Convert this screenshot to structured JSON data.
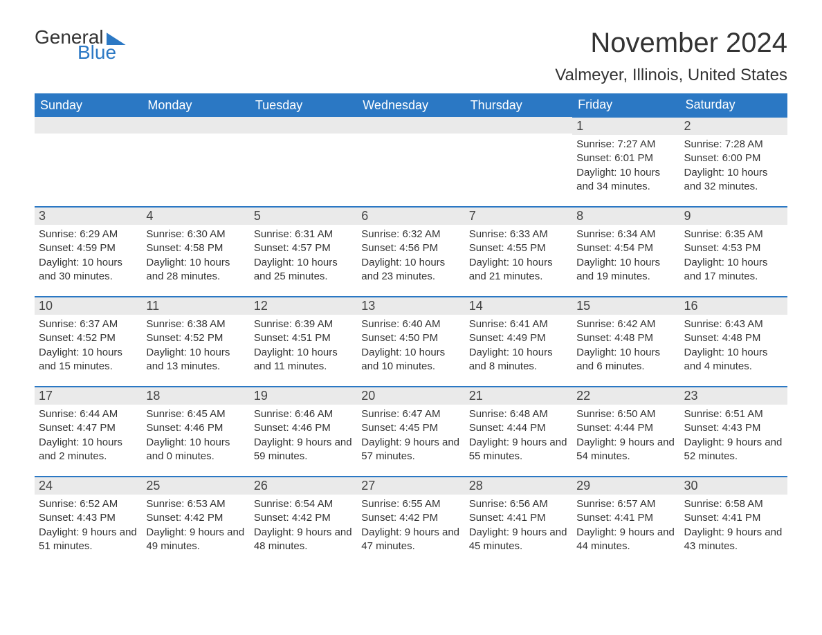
{
  "logo": {
    "word1": "General",
    "word2": "Blue"
  },
  "title": "November 2024",
  "location": "Valmeyer, Illinois, United States",
  "colors": {
    "brand_blue": "#2b78c4",
    "header_text": "#ffffff",
    "daynum_bg": "#eaeaea",
    "text": "#333333",
    "background": "#ffffff"
  },
  "weekdays": [
    "Sunday",
    "Monday",
    "Tuesday",
    "Wednesday",
    "Thursday",
    "Friday",
    "Saturday"
  ],
  "layout": {
    "start_weekday_index": 5,
    "days_in_month": 30,
    "rows": 5
  },
  "days": {
    "1": {
      "sunrise": "7:27 AM",
      "sunset": "6:01 PM",
      "daylight": "10 hours and 34 minutes."
    },
    "2": {
      "sunrise": "7:28 AM",
      "sunset": "6:00 PM",
      "daylight": "10 hours and 32 minutes."
    },
    "3": {
      "sunrise": "6:29 AM",
      "sunset": "4:59 PM",
      "daylight": "10 hours and 30 minutes."
    },
    "4": {
      "sunrise": "6:30 AM",
      "sunset": "4:58 PM",
      "daylight": "10 hours and 28 minutes."
    },
    "5": {
      "sunrise": "6:31 AM",
      "sunset": "4:57 PM",
      "daylight": "10 hours and 25 minutes."
    },
    "6": {
      "sunrise": "6:32 AM",
      "sunset": "4:56 PM",
      "daylight": "10 hours and 23 minutes."
    },
    "7": {
      "sunrise": "6:33 AM",
      "sunset": "4:55 PM",
      "daylight": "10 hours and 21 minutes."
    },
    "8": {
      "sunrise": "6:34 AM",
      "sunset": "4:54 PM",
      "daylight": "10 hours and 19 minutes."
    },
    "9": {
      "sunrise": "6:35 AM",
      "sunset": "4:53 PM",
      "daylight": "10 hours and 17 minutes."
    },
    "10": {
      "sunrise": "6:37 AM",
      "sunset": "4:52 PM",
      "daylight": "10 hours and 15 minutes."
    },
    "11": {
      "sunrise": "6:38 AM",
      "sunset": "4:52 PM",
      "daylight": "10 hours and 13 minutes."
    },
    "12": {
      "sunrise": "6:39 AM",
      "sunset": "4:51 PM",
      "daylight": "10 hours and 11 minutes."
    },
    "13": {
      "sunrise": "6:40 AM",
      "sunset": "4:50 PM",
      "daylight": "10 hours and 10 minutes."
    },
    "14": {
      "sunrise": "6:41 AM",
      "sunset": "4:49 PM",
      "daylight": "10 hours and 8 minutes."
    },
    "15": {
      "sunrise": "6:42 AM",
      "sunset": "4:48 PM",
      "daylight": "10 hours and 6 minutes."
    },
    "16": {
      "sunrise": "6:43 AM",
      "sunset": "4:48 PM",
      "daylight": "10 hours and 4 minutes."
    },
    "17": {
      "sunrise": "6:44 AM",
      "sunset": "4:47 PM",
      "daylight": "10 hours and 2 minutes."
    },
    "18": {
      "sunrise": "6:45 AM",
      "sunset": "4:46 PM",
      "daylight": "10 hours and 0 minutes."
    },
    "19": {
      "sunrise": "6:46 AM",
      "sunset": "4:46 PM",
      "daylight": "9 hours and 59 minutes."
    },
    "20": {
      "sunrise": "6:47 AM",
      "sunset": "4:45 PM",
      "daylight": "9 hours and 57 minutes."
    },
    "21": {
      "sunrise": "6:48 AM",
      "sunset": "4:44 PM",
      "daylight": "9 hours and 55 minutes."
    },
    "22": {
      "sunrise": "6:50 AM",
      "sunset": "4:44 PM",
      "daylight": "9 hours and 54 minutes."
    },
    "23": {
      "sunrise": "6:51 AM",
      "sunset": "4:43 PM",
      "daylight": "9 hours and 52 minutes."
    },
    "24": {
      "sunrise": "6:52 AM",
      "sunset": "4:43 PM",
      "daylight": "9 hours and 51 minutes."
    },
    "25": {
      "sunrise": "6:53 AM",
      "sunset": "4:42 PM",
      "daylight": "9 hours and 49 minutes."
    },
    "26": {
      "sunrise": "6:54 AM",
      "sunset": "4:42 PM",
      "daylight": "9 hours and 48 minutes."
    },
    "27": {
      "sunrise": "6:55 AM",
      "sunset": "4:42 PM",
      "daylight": "9 hours and 47 minutes."
    },
    "28": {
      "sunrise": "6:56 AM",
      "sunset": "4:41 PM",
      "daylight": "9 hours and 45 minutes."
    },
    "29": {
      "sunrise": "6:57 AM",
      "sunset": "4:41 PM",
      "daylight": "9 hours and 44 minutes."
    },
    "30": {
      "sunrise": "6:58 AM",
      "sunset": "4:41 PM",
      "daylight": "9 hours and 43 minutes."
    }
  },
  "labels": {
    "sunrise_prefix": "Sunrise: ",
    "sunset_prefix": "Sunset: ",
    "daylight_prefix": "Daylight: "
  }
}
